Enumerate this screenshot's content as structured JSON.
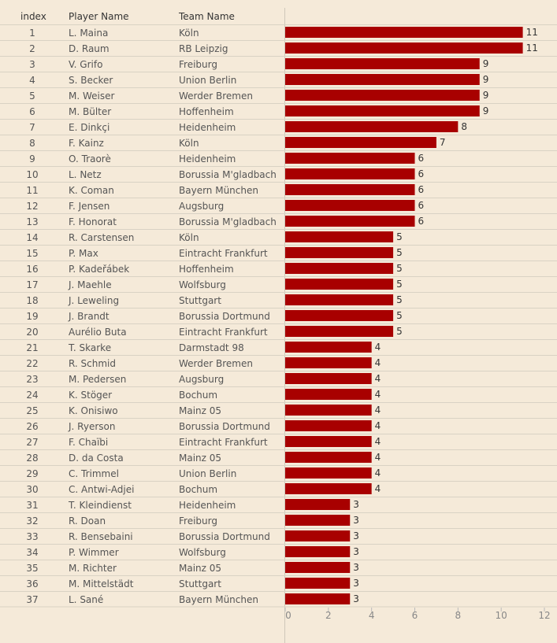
{
  "columns": {
    "index": "index",
    "player": "Player Name",
    "team": "Team Name"
  },
  "colors": {
    "bar": "#a80000",
    "background": "#f5ead9",
    "gridline": "#d9d2c4"
  },
  "chart_data": {
    "type": "bar",
    "orientation": "horizontal",
    "xlim": [
      0,
      12
    ],
    "xticks": [
      0,
      2,
      4,
      6,
      8,
      10,
      12
    ],
    "rows": [
      {
        "index": 1,
        "player": "L. Maina",
        "team": "Köln",
        "value": 11
      },
      {
        "index": 2,
        "player": "D. Raum",
        "team": "RB Leipzig",
        "value": 11
      },
      {
        "index": 3,
        "player": "V. Grifo",
        "team": "Freiburg",
        "value": 9
      },
      {
        "index": 4,
        "player": "S. Becker",
        "team": "Union Berlin",
        "value": 9
      },
      {
        "index": 5,
        "player": "M. Weiser",
        "team": "Werder Bremen",
        "value": 9
      },
      {
        "index": 6,
        "player": "M. Bülter",
        "team": "Hoffenheim",
        "value": 9
      },
      {
        "index": 7,
        "player": "E. Dinkçi",
        "team": "Heidenheim",
        "value": 8
      },
      {
        "index": 8,
        "player": "F. Kainz",
        "team": "Köln",
        "value": 7
      },
      {
        "index": 9,
        "player": "O. Traorè",
        "team": "Heidenheim",
        "value": 6
      },
      {
        "index": 10,
        "player": "L. Netz",
        "team": "Borussia M'gladbach",
        "value": 6
      },
      {
        "index": 11,
        "player": "K. Coman",
        "team": "Bayern München",
        "value": 6
      },
      {
        "index": 12,
        "player": "F. Jensen",
        "team": "Augsburg",
        "value": 6
      },
      {
        "index": 13,
        "player": "F. Honorat",
        "team": "Borussia M'gladbach",
        "value": 6
      },
      {
        "index": 14,
        "player": "R. Carstensen",
        "team": "Köln",
        "value": 5
      },
      {
        "index": 15,
        "player": "P. Max",
        "team": "Eintracht Frankfurt",
        "value": 5
      },
      {
        "index": 16,
        "player": "P. Kadeřábek",
        "team": "Hoffenheim",
        "value": 5
      },
      {
        "index": 17,
        "player": "J. Maehle",
        "team": "Wolfsburg",
        "value": 5
      },
      {
        "index": 18,
        "player": "J. Leweling",
        "team": "Stuttgart",
        "value": 5
      },
      {
        "index": 19,
        "player": "J. Brandt",
        "team": "Borussia Dortmund",
        "value": 5
      },
      {
        "index": 20,
        "player": "Aurélio Buta",
        "team": "Eintracht Frankfurt",
        "value": 5
      },
      {
        "index": 21,
        "player": "T. Skarke",
        "team": "Darmstadt 98",
        "value": 4
      },
      {
        "index": 22,
        "player": "R. Schmid",
        "team": "Werder Bremen",
        "value": 4
      },
      {
        "index": 23,
        "player": "M. Pedersen",
        "team": "Augsburg",
        "value": 4
      },
      {
        "index": 24,
        "player": "K. Stöger",
        "team": "Bochum",
        "value": 4
      },
      {
        "index": 25,
        "player": "K. Onisiwo",
        "team": "Mainz 05",
        "value": 4
      },
      {
        "index": 26,
        "player": "J. Ryerson",
        "team": "Borussia Dortmund",
        "value": 4
      },
      {
        "index": 27,
        "player": "F. Chaïbi",
        "team": "Eintracht Frankfurt",
        "value": 4
      },
      {
        "index": 28,
        "player": "D. da Costa",
        "team": "Mainz 05",
        "value": 4
      },
      {
        "index": 29,
        "player": "C. Trimmel",
        "team": "Union Berlin",
        "value": 4
      },
      {
        "index": 30,
        "player": "C. Antwi-Adjei",
        "team": "Bochum",
        "value": 4
      },
      {
        "index": 31,
        "player": "T. Kleindienst",
        "team": "Heidenheim",
        "value": 3
      },
      {
        "index": 32,
        "player": "R. Doan",
        "team": "Freiburg",
        "value": 3
      },
      {
        "index": 33,
        "player": "R. Bensebaini",
        "team": "Borussia Dortmund",
        "value": 3
      },
      {
        "index": 34,
        "player": "P. Wimmer",
        "team": "Wolfsburg",
        "value": 3
      },
      {
        "index": 35,
        "player": "M. Richter",
        "team": "Mainz 05",
        "value": 3
      },
      {
        "index": 36,
        "player": "M. Mittelstädt",
        "team": "Stuttgart",
        "value": 3
      },
      {
        "index": 37,
        "player": "L. Sané",
        "team": "Bayern München",
        "value": 3
      }
    ]
  }
}
